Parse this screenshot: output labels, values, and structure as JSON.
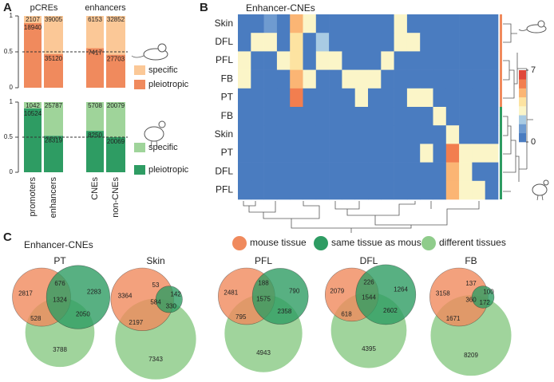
{
  "panel_labels": [
    "A",
    "B",
    "C"
  ],
  "chart_data": [
    {
      "type": "stacked-bar",
      "group_labels": [
        "pCREs",
        "enhancers"
      ],
      "categories": [
        "promoters",
        "enhancers",
        "CNEs",
        "non-CNEs"
      ],
      "ylim": [
        0,
        1
      ],
      "yticks": [
        0,
        0.5,
        1
      ],
      "rows": [
        {
          "series": [
            {
              "name": "specific",
              "color": "#fbc897",
              "values": [
                0.1,
                0.53,
                0.45,
                0.54
              ],
              "counts": [
                2107,
                39005,
                6153,
                32852
              ]
            },
            {
              "name": "pleiotropic",
              "color": "#f08a5d",
              "values": [
                0.9,
                0.47,
                0.55,
                0.46
              ],
              "counts": [
                18940,
                35120,
                7417,
                27703
              ]
            }
          ]
        },
        {
          "series": [
            {
              "name": "specific",
              "color": "#9fd49a",
              "values": [
                0.09,
                0.48,
                0.41,
                0.5
              ],
              "counts": [
                1042,
                25787,
                5708,
                20079
              ]
            },
            {
              "name": "pleiotropic",
              "color": "#2e9c63",
              "values": [
                0.91,
                0.52,
                0.59,
                0.5
              ],
              "counts": [
                10524,
                28319,
                8250,
                20069
              ]
            }
          ]
        }
      ]
    },
    {
      "type": "heatmap",
      "title": "Enhancer-CNEs",
      "rows": [
        "Skin",
        "DFL",
        "PFL",
        "FB",
        "PT",
        "FB",
        "Skin",
        "PT",
        "DFL",
        "PFL"
      ],
      "matrix": [
        [
          0,
          0,
          1,
          0,
          5,
          3,
          0,
          0,
          0,
          0,
          0,
          0,
          3,
          0,
          0,
          0,
          0,
          0,
          0,
          0
        ],
        [
          0,
          3,
          3,
          0,
          4,
          0,
          2,
          0,
          0,
          0,
          0,
          0,
          3,
          3,
          0,
          0,
          0,
          0,
          0,
          0
        ],
        [
          3,
          0,
          0,
          3,
          4,
          0,
          3,
          3,
          0,
          0,
          0,
          3,
          0,
          0,
          0,
          0,
          0,
          0,
          0,
          0
        ],
        [
          3,
          0,
          0,
          0,
          5,
          3,
          0,
          0,
          3,
          3,
          3,
          0,
          0,
          0,
          0,
          0,
          0,
          0,
          0,
          0
        ],
        [
          0,
          0,
          0,
          0,
          6,
          0,
          0,
          0,
          0,
          3,
          0,
          0,
          0,
          3,
          3,
          0,
          0,
          0,
          0,
          0
        ],
        [
          0,
          0,
          0,
          0,
          0,
          0,
          0,
          0,
          0,
          0,
          0,
          0,
          0,
          0,
          0,
          3,
          0,
          0,
          0,
          0
        ],
        [
          0,
          0,
          0,
          0,
          0,
          0,
          0,
          0,
          0,
          0,
          0,
          0,
          0,
          0,
          0,
          0,
          3,
          0,
          0,
          0
        ],
        [
          0,
          0,
          0,
          0,
          0,
          0,
          0,
          0,
          0,
          0,
          0,
          0,
          0,
          0,
          3,
          0,
          6,
          3,
          3,
          3
        ],
        [
          0,
          0,
          0,
          0,
          0,
          0,
          0,
          0,
          0,
          0,
          0,
          0,
          0,
          0,
          0,
          0,
          5,
          3,
          0,
          0
        ],
        [
          0,
          0,
          0,
          0,
          0,
          0,
          0,
          0,
          0,
          0,
          0,
          0,
          0,
          0,
          0,
          0,
          5,
          3,
          3,
          0
        ]
      ],
      "clim": [
        0,
        7
      ],
      "cticks": [
        0,
        7
      ],
      "colors": [
        "#4a7cc0",
        "#6f9bd0",
        "#a9cbe3",
        "#fbf5c8",
        "#fde3a1",
        "#fbb574",
        "#f27e4f",
        "#e0483a"
      ]
    },
    {
      "type": "venn",
      "title": "Enhancer-CNEs",
      "sets": [
        {
          "name": "mouse tissue",
          "color": "#f08a5d"
        },
        {
          "name": "same tissue as mouse",
          "color": "#2e9c63"
        },
        {
          "name": "different tissues",
          "color": "#8fcc8b"
        }
      ],
      "diagrams": [
        {
          "title": "PT",
          "values": [
            2817,
            676,
            2283,
            1324,
            528,
            2050,
            3788
          ]
        },
        {
          "title": "Skin",
          "values": [
            3364,
            53,
            142,
            584,
            2197,
            330,
            7343
          ]
        },
        {
          "title": "PFL",
          "values": [
            2481,
            188,
            790,
            1575,
            795,
            2358,
            4943
          ]
        },
        {
          "title": "DFL",
          "values": [
            2079,
            226,
            1264,
            1544,
            618,
            2602,
            4395
          ]
        },
        {
          "title": "FB",
          "values": [
            3158,
            137,
            100,
            360,
            1671,
            172,
            8209
          ]
        }
      ]
    }
  ]
}
